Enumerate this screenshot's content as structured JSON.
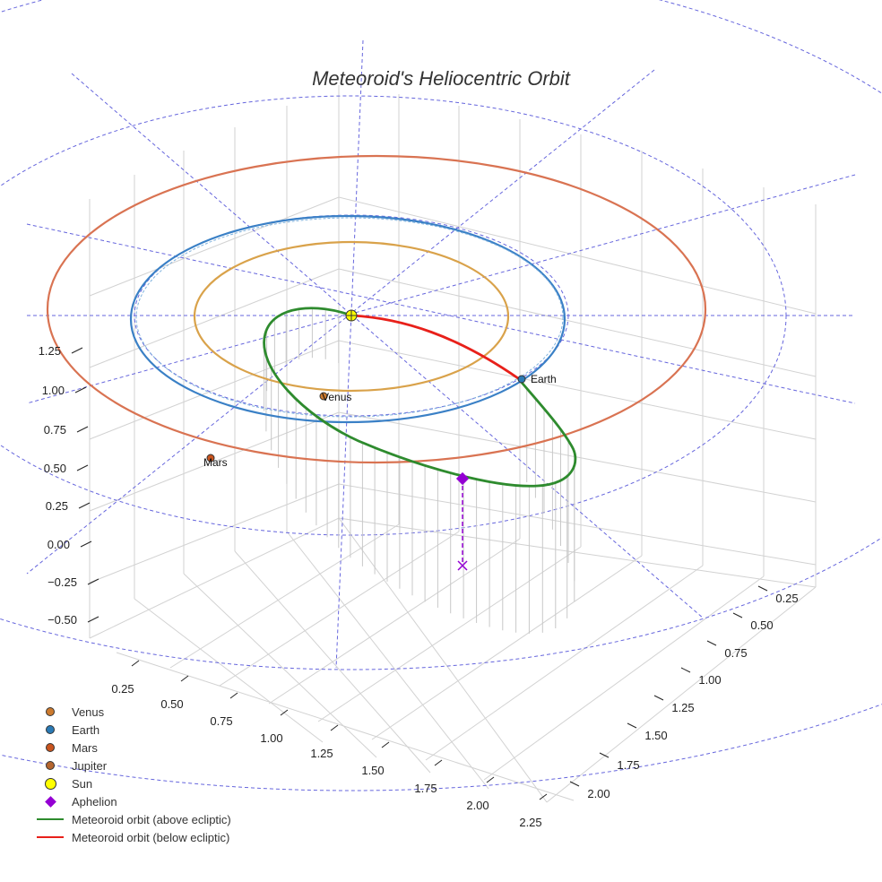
{
  "chart_data": {
    "type": "line",
    "title": "Meteoroid's Heliocentric Orbit",
    "projection": "3d",
    "axes": {
      "x": {
        "ticks": [
          "0.25",
          "0.50",
          "0.75",
          "1.00",
          "1.25",
          "1.50",
          "1.75",
          "2.00",
          "2.25"
        ]
      },
      "y": {
        "ticks": [
          "0.25",
          "0.50",
          "0.75",
          "1.00",
          "1.25",
          "1.50",
          "1.75",
          "2.00"
        ]
      },
      "z": {
        "ticks": [
          "1.25",
          "1.00",
          "0.75",
          "0.50",
          "0.25",
          "0.00",
          "−0.25",
          "−0.50"
        ]
      }
    },
    "point_labels": {
      "venus": "Venus",
      "earth": "Earth",
      "mars": "Mars"
    },
    "legend": [
      {
        "label": "Venus",
        "color": "#cc7a2e",
        "symbol": "dot"
      },
      {
        "label": "Earth",
        "color": "#2a7ab5",
        "symbol": "dot"
      },
      {
        "label": "Mars",
        "color": "#c9541e",
        "symbol": "dot"
      },
      {
        "label": "Jupiter",
        "color": "#b5652f",
        "symbol": "dot"
      },
      {
        "label": "Sun",
        "color": "#ffff00",
        "symbol": "sun"
      },
      {
        "label": "Aphelion",
        "color": "#9400d3",
        "symbol": "diamond"
      },
      {
        "label": "Meteoroid orbit (above ecliptic)",
        "color": "#2e8b2e",
        "symbol": "line"
      },
      {
        "label": "Meteoroid orbit (below ecliptic)",
        "color": "#e8201a",
        "symbol": "line"
      }
    ],
    "colors": {
      "venus_orbit": "#d9a24a",
      "earth_orbit": "#3a80c6",
      "mars_orbit": "#d97352",
      "grid_circles": "#6666dd",
      "grid": "#cccccc"
    }
  }
}
